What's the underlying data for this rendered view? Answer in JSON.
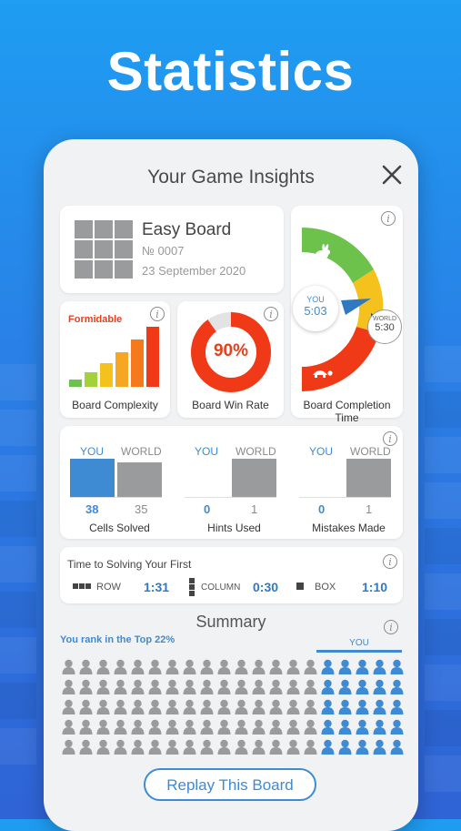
{
  "headline": "Statistics",
  "dialog": {
    "title": "Your Game Insights",
    "board": {
      "name": "Easy Board",
      "number": "№ 0007",
      "date": "23 September 2020"
    },
    "complexity": {
      "level": "Formidable",
      "caption": "Board Complexity",
      "bar_levels": 6,
      "active_bars": 6
    },
    "win_rate": {
      "value": "90%",
      "fraction": 0.9,
      "caption": "Board Win Rate"
    },
    "completion": {
      "you_label": "YOU",
      "you_time": "5:03",
      "world_label": "WORLD",
      "world_time": "5:30",
      "caption": "Board Completion Time",
      "fast_icon": "rabbit-icon",
      "slow_icon": "turtle-icon"
    },
    "compare": {
      "you_label": "YOU",
      "world_label": "WORLD",
      "groups": [
        {
          "caption": "Cells Solved",
          "you": "38",
          "world": "35"
        },
        {
          "caption": "Hints Used",
          "you": "0",
          "world": "1"
        },
        {
          "caption": "Mistakes Made",
          "you": "0",
          "world": "1"
        }
      ]
    },
    "first_solve": {
      "title": "Time to Solving Your First",
      "items": [
        {
          "label": "ROW",
          "value": "1:31"
        },
        {
          "label": "COLUMN",
          "value": "0:30"
        },
        {
          "label": "BOX",
          "value": "1:10"
        }
      ]
    },
    "summary": {
      "title": "Summary",
      "rank_text": "You rank in the Top 22%",
      "you_marker": "YOU",
      "rows": 5,
      "cols": 20,
      "you_cols": 5
    },
    "replay_label": "Replay This Board",
    "colors": {
      "accent": "#3e8bd3",
      "grey": "#9a9b9d",
      "red": "#f03a17",
      "orange": "#f5a623",
      "green": "#6cc24a"
    }
  }
}
